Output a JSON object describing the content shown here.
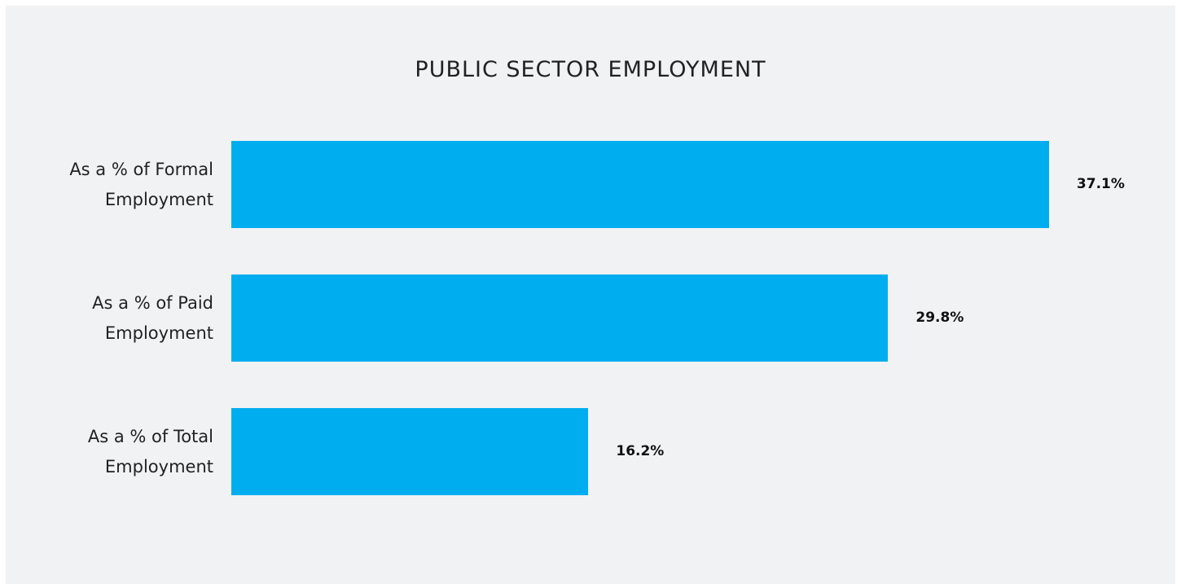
{
  "chart_data": {
    "type": "bar",
    "orientation": "horizontal",
    "title": "PUBLIC SECTOR EMPLOYMENT",
    "categories": [
      "As a % of Formal Employment",
      "As a % of Paid Employment",
      "As a % of Total Employment"
    ],
    "values": [
      37.1,
      29.8,
      16.2
    ],
    "value_labels": [
      "37.1%",
      "29.8%",
      "16.2%"
    ],
    "color": "#00adee"
  }
}
